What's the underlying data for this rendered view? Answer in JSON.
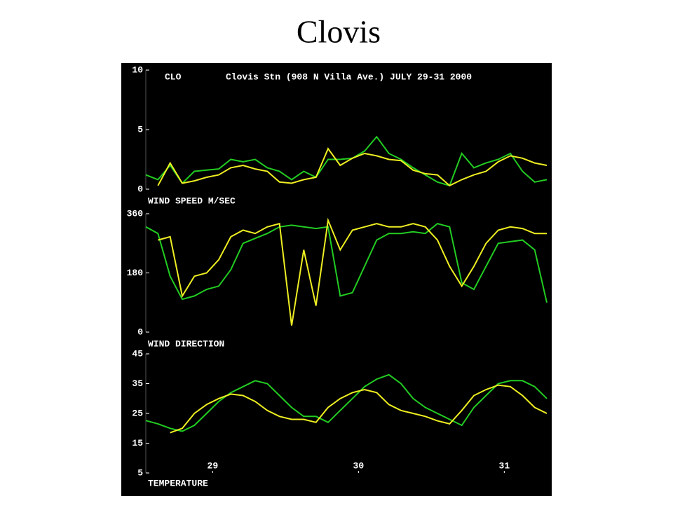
{
  "title": "Clovis",
  "chart_data": [
    {
      "type": "line",
      "station": "CLO",
      "title": "Clovis Stn (908 N Villa Ave.) JULY 29-31 2000",
      "label": "WIND SPEED M/SEC",
      "x": [
        0,
        2,
        4,
        6,
        8,
        10,
        12,
        14,
        16,
        18,
        20,
        22,
        24,
        26,
        28,
        30,
        32,
        34,
        36,
        38,
        40,
        42,
        44,
        46,
        48,
        50,
        52,
        54,
        56,
        58,
        60,
        62,
        64,
        66
      ],
      "xlim": [
        0,
        66
      ],
      "ylim": [
        0,
        10
      ],
      "yticks": [
        0,
        5,
        10
      ],
      "series": [
        {
          "color": "#22cc22",
          "values": [
            1.2,
            0.8,
            2.0,
            0.5,
            1.5,
            1.6,
            1.7,
            2.5,
            2.3,
            2.5,
            1.8,
            1.5,
            0.8,
            1.5,
            1.0,
            2.5,
            2.5,
            2.6,
            3.2,
            4.4,
            3.0,
            2.5,
            1.8,
            1.2,
            0.6,
            0.3,
            3.0,
            1.8,
            2.2,
            2.5,
            3.0,
            1.5,
            0.6,
            0.8
          ]
        },
        {
          "color": "#eeee22",
          "values": [
            null,
            0.3,
            2.2,
            0.5,
            0.7,
            1.0,
            1.2,
            1.8,
            2.0,
            1.7,
            1.5,
            0.6,
            0.5,
            0.8,
            1.0,
            3.4,
            2.0,
            2.6,
            3.0,
            2.8,
            2.5,
            2.4,
            1.6,
            1.3,
            1.2,
            0.3,
            0.8,
            1.2,
            1.5,
            2.3,
            2.8,
            2.6,
            2.2,
            2.0
          ]
        }
      ]
    },
    {
      "type": "line",
      "label": "WIND DIRECTION",
      "x": [
        0,
        2,
        4,
        6,
        8,
        10,
        12,
        14,
        16,
        18,
        20,
        22,
        24,
        26,
        28,
        30,
        32,
        34,
        36,
        38,
        40,
        42,
        44,
        46,
        48,
        50,
        52,
        54,
        56,
        58,
        60,
        62,
        64,
        66
      ],
      "xlim": [
        0,
        66
      ],
      "ylim": [
        0,
        360
      ],
      "yticks": [
        0,
        180,
        360
      ],
      "series": [
        {
          "color": "#22cc22",
          "values": [
            320,
            300,
            170,
            100,
            110,
            130,
            140,
            190,
            270,
            285,
            300,
            320,
            325,
            320,
            315,
            320,
            110,
            120,
            200,
            280,
            300,
            300,
            305,
            300,
            330,
            320,
            150,
            130,
            200,
            270,
            275,
            280,
            250,
            90
          ]
        },
        {
          "color": "#eeee22",
          "values": [
            null,
            280,
            290,
            110,
            170,
            180,
            220,
            290,
            310,
            300,
            320,
            330,
            20,
            250,
            80,
            340,
            250,
            310,
            320,
            330,
            320,
            320,
            330,
            320,
            280,
            200,
            140,
            200,
            270,
            310,
            320,
            315,
            300,
            300
          ]
        }
      ]
    },
    {
      "type": "line",
      "label": "TEMPERATURE",
      "x": [
        0,
        2,
        4,
        6,
        8,
        10,
        12,
        14,
        16,
        18,
        20,
        22,
        24,
        26,
        28,
        30,
        32,
        34,
        36,
        38,
        40,
        42,
        44,
        46,
        48,
        50,
        52,
        54,
        56,
        58,
        60,
        62,
        64,
        66
      ],
      "xlim": [
        0,
        66
      ],
      "ylim": [
        5,
        45
      ],
      "yticks": [
        5,
        15,
        25,
        35,
        45
      ],
      "xticks": [
        {
          "value": 11,
          "label": "29"
        },
        {
          "value": 35,
          "label": "30"
        },
        {
          "value": 59,
          "label": "31"
        }
      ],
      "series": [
        {
          "color": "#22cc22",
          "values": [
            22.6,
            21.5,
            20,
            19,
            21,
            25,
            29,
            32,
            34,
            36,
            35,
            31,
            27,
            24,
            24,
            22,
            26,
            30,
            34,
            36.5,
            38,
            35,
            30,
            27,
            25,
            23,
            21,
            27,
            31,
            35,
            36,
            36,
            34,
            30
          ]
        },
        {
          "color": "#eeee22",
          "values": [
            null,
            null,
            18.5,
            20,
            25,
            28,
            30,
            31.5,
            31,
            29,
            26,
            24,
            23,
            23,
            22,
            27,
            30,
            32,
            33,
            32,
            28,
            26,
            25,
            24,
            22.5,
            21.5,
            26,
            31,
            33,
            34.5,
            34,
            31,
            27,
            25
          ]
        }
      ]
    }
  ]
}
